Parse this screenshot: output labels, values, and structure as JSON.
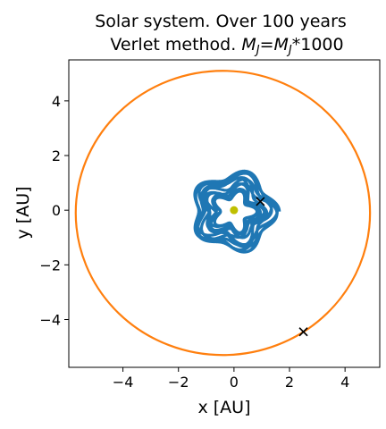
{
  "chart_data": {
    "type": "line",
    "title_line1": "Solar system. Over 100 years",
    "title_line2_prefix": "Verlet method. ",
    "title_line2_math": {
      "symbol": "M",
      "subscript": "J",
      "equals": "=",
      "subscript2": "J",
      "suffix": "*1000"
    },
    "xlabel": "x [AU]",
    "ylabel": "y [AU]",
    "xlim": [
      -5.95,
      5.25
    ],
    "ylim": [
      -5.75,
      5.5
    ],
    "xticks": [
      -4,
      -2,
      0,
      2,
      4
    ],
    "yticks": [
      -4,
      -2,
      0,
      2,
      4
    ],
    "xtick_labels": [
      "−4",
      "−2",
      "0",
      "2",
      "4"
    ],
    "ytick_labels": [
      "−4",
      "−2",
      "0",
      "2",
      "4"
    ],
    "grid": false,
    "aspect": "equal",
    "series": [
      {
        "kind": "rosette-orbit",
        "color": "#1f77b4",
        "center": [
          0.0,
          0.0
        ],
        "mean_radius": 1.05,
        "radial_amplitude": 0.45,
        "lobes": 5,
        "approx_extent": {
          "x": [
            -1.85,
            1.85
          ],
          "y": [
            -1.85,
            1.65
          ]
        }
      },
      {
        "kind": "circular-orbit",
        "color": "#ff7f0e",
        "center": [
          -0.4,
          -0.1
        ],
        "radius_x": 5.3,
        "radius_y": 5.2
      }
    ],
    "sun": {
      "x": 0.0,
      "y": 0.0,
      "color": "#bfbf00"
    },
    "markers": [
      {
        "x": 0.95,
        "y": 0.32,
        "symbol": "x",
        "color": "#000000"
      },
      {
        "x": 2.5,
        "y": -4.45,
        "symbol": "x",
        "color": "#000000"
      }
    ]
  }
}
